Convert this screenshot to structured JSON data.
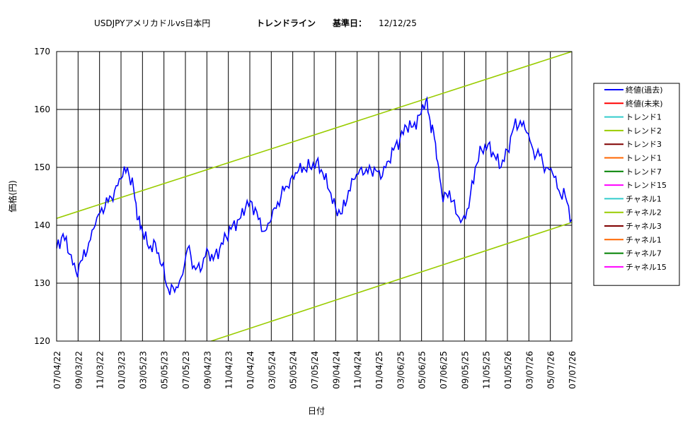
{
  "chart_data": {
    "type": "line",
    "title_parts": [
      "USDJPYアメリカドルvs日本円",
      "トレンドライン",
      "基準日：",
      "12/12/25"
    ],
    "xlabel": "日付",
    "ylabel": "価格(円)",
    "ylim": [
      120,
      170
    ],
    "yticks": [
      120,
      130,
      140,
      150,
      160,
      170
    ],
    "xticks": [
      "07/04/22",
      "09/03/22",
      "11/03/22",
      "01/03/23",
      "03/05/23",
      "05/05/23",
      "07/05/23",
      "09/04/23",
      "11/04/23",
      "01/04/24",
      "03/05/24",
      "05/05/24",
      "07/05/24",
      "09/04/24",
      "11/04/24",
      "01/04/25",
      "03/06/25",
      "05/06/25",
      "07/06/25",
      "09/05/25",
      "11/05/25",
      "01/05/26",
      "03/07/26",
      "05/07/26",
      "07/07/26"
    ],
    "grid": true,
    "legend_position": "right",
    "legend": [
      {
        "label": "終値(過去)",
        "color": "#0000ff"
      },
      {
        "label": "終値(未来)",
        "color": "#ff0000"
      },
      {
        "label": "トレンド1",
        "color": "#33cccc"
      },
      {
        "label": "トレンド2",
        "color": "#99cc00"
      },
      {
        "label": "トレンド3",
        "color": "#800000"
      },
      {
        "label": "トレンド1",
        "color": "#ff6600"
      },
      {
        "label": "トレンド7",
        "color": "#008000"
      },
      {
        "label": "トレンド15",
        "color": "#ff00ff"
      },
      {
        "label": "チャネル1",
        "color": "#33cccc"
      },
      {
        "label": "チャネル2",
        "color": "#99cc00"
      },
      {
        "label": "チャネル3",
        "color": "#800000"
      },
      {
        "label": "チャネル1",
        "color": "#ff6600"
      },
      {
        "label": "チャネル7",
        "color": "#008000"
      },
      {
        "label": "チャネル15",
        "color": "#ff00ff"
      }
    ],
    "series": [
      {
        "name": "終値(過去)",
        "color": "#0000ff",
        "kind": "price",
        "points": [
          [
            0,
            136
          ],
          [
            0.3,
            138.5
          ],
          [
            0.6,
            135
          ],
          [
            0.9,
            132
          ],
          [
            1.2,
            134
          ],
          [
            1.5,
            137
          ],
          [
            1.8,
            140
          ],
          [
            2.1,
            143
          ],
          [
            2.4,
            144
          ],
          [
            2.7,
            146
          ],
          [
            3,
            148
          ],
          [
            3.3,
            150
          ],
          [
            3.6,
            146
          ],
          [
            3.8,
            141
          ],
          [
            4,
            139
          ],
          [
            4.3,
            136
          ],
          [
            4.6,
            137
          ],
          [
            4.9,
            133
          ],
          [
            5.2,
            129
          ],
          [
            5.5,
            128.5
          ],
          [
            5.8,
            131
          ],
          [
            6.1,
            136
          ],
          [
            6.4,
            133
          ],
          [
            6.7,
            132
          ],
          [
            7,
            136
          ],
          [
            7.3,
            134
          ],
          [
            7.6,
            136
          ],
          [
            7.9,
            138
          ],
          [
            8.2,
            140
          ],
          [
            8.5,
            141
          ],
          [
            8.8,
            143
          ],
          [
            9.1,
            144
          ],
          [
            9.4,
            141
          ],
          [
            9.7,
            139
          ],
          [
            10,
            141
          ],
          [
            10.3,
            144
          ],
          [
            10.6,
            146
          ],
          [
            10.9,
            148
          ],
          [
            11.2,
            149
          ],
          [
            11.5,
            150
          ],
          [
            11.8,
            150
          ],
          [
            12.1,
            151
          ],
          [
            12.4,
            149
          ],
          [
            12.7,
            146
          ],
          [
            13,
            143
          ],
          [
            13.3,
            142
          ],
          [
            13.6,
            146
          ],
          [
            13.9,
            148
          ],
          [
            14.2,
            150
          ],
          [
            14.5,
            149
          ],
          [
            14.8,
            150
          ],
          [
            15.1,
            148
          ],
          [
            15.4,
            151
          ],
          [
            15.7,
            153
          ],
          [
            16,
            155
          ],
          [
            16.3,
            157
          ],
          [
            16.6,
            157
          ],
          [
            16.9,
            159
          ],
          [
            17.2,
            161.5
          ],
          [
            17.4,
            158
          ],
          [
            17.6,
            155
          ],
          [
            17.8,
            150
          ],
          [
            18,
            144
          ],
          [
            18.3,
            146
          ],
          [
            18.6,
            142
          ],
          [
            18.9,
            141
          ],
          [
            19.2,
            143
          ],
          [
            19.5,
            150
          ],
          [
            19.8,
            153
          ],
          [
            20.1,
            154
          ],
          [
            20.4,
            152
          ],
          [
            20.7,
            150
          ],
          [
            21,
            153
          ],
          [
            21.3,
            157
          ],
          [
            21.6,
            158
          ],
          [
            21.9,
            156
          ],
          [
            22.2,
            153
          ],
          [
            22.5,
            152
          ],
          [
            22.8,
            150
          ],
          [
            23.1,
            149
          ],
          [
            23.4,
            146
          ],
          [
            23.7,
            145
          ],
          [
            24,
            141
          ],
          [
            24.3,
            144
          ],
          [
            24.6,
            143
          ],
          [
            24.9,
            145
          ],
          [
            25.2,
            146
          ],
          [
            25.5,
            144
          ],
          [
            25.8,
            147
          ],
          [
            26.1,
            148
          ],
          [
            26.4,
            147.5
          ],
          [
            26.7,
            148
          ],
          [
            27,
            147
          ],
          [
            27.3,
            148
          ],
          [
            27.6,
            149
          ],
          [
            27.9,
            150
          ],
          [
            28.2,
            153
          ],
          [
            28.5,
            155
          ],
          [
            28.8,
            157
          ],
          [
            29.1,
            156
          ],
          [
            29.4,
            157
          ]
        ]
      },
      {
        "name": "チャネル2 (上)",
        "color": "#99cc00",
        "kind": "line",
        "points": [
          [
            0,
            141.2
          ],
          [
            24,
            170
          ]
        ]
      },
      {
        "name": "トレンド2",
        "color": "#99cc00",
        "kind": "line",
        "points": [
          [
            7.2,
            120
          ],
          [
            34,
            152.7
          ]
        ]
      },
      {
        "name": "トレンド3",
        "color": "#800000",
        "kind": "line",
        "points": [
          [
            24.3,
            138.4
          ],
          [
            34,
            162.6
          ]
        ]
      },
      {
        "name": "チャネル3",
        "color": "#800000",
        "kind": "line",
        "points": [
          [
            24.3,
            145
          ],
          [
            34,
            169.3
          ]
        ]
      },
      {
        "name": "トレンド1",
        "color": "#ff6600",
        "kind": "line",
        "points": [
          [
            27.2,
            144.5
          ],
          [
            31.5,
            170
          ]
        ]
      },
      {
        "name": "チャネル1",
        "color": "#ff6600",
        "kind": "line",
        "points": [
          [
            27.2,
            148.5
          ],
          [
            30.6,
            170
          ]
        ]
      },
      {
        "name": "トレンド7",
        "color": "#008000",
        "kind": "line",
        "points": [
          [
            28.6,
            150
          ],
          [
            32.2,
            170
          ]
        ]
      },
      {
        "name": "チャネル7",
        "color": "#008000",
        "kind": "line",
        "points": [
          [
            28.6,
            153.5
          ],
          [
            31.4,
            170
          ]
        ]
      },
      {
        "name": "トレンド15",
        "color": "#ff00ff",
        "kind": "line",
        "points": [
          [
            29.2,
            157.3
          ],
          [
            34,
            145.7
          ]
        ]
      },
      {
        "name": "チャネル15",
        "color": "#ff00ff",
        "kind": "line",
        "points": [
          [
            29.2,
            155.3
          ],
          [
            34,
            143.6
          ]
        ]
      }
    ]
  }
}
